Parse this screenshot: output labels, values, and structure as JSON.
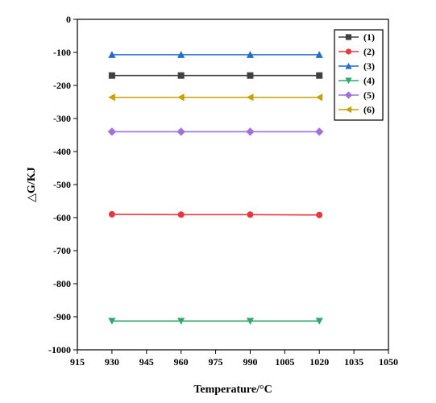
{
  "chart_data": {
    "type": "line",
    "title": "",
    "xlabel": "Temperature/°C",
    "ylabel": "△G/KJ",
    "xlim": [
      915,
      1050
    ],
    "ylim": [
      -1000,
      0
    ],
    "x_ticks": [
      915,
      930,
      945,
      960,
      975,
      990,
      1005,
      1020,
      1035,
      1050
    ],
    "y_ticks": [
      0,
      -100,
      -200,
      -300,
      -400,
      -500,
      -600,
      -700,
      -800,
      -900,
      -1000
    ],
    "x": [
      930,
      960,
      990,
      1020
    ],
    "legend_position": "top-right",
    "grid": false,
    "series": [
      {
        "name": "(1)",
        "color": "#404040",
        "marker": "square",
        "values": [
          -170,
          -170,
          -170,
          -170
        ]
      },
      {
        "name": "(2)",
        "color": "#e8383d",
        "marker": "circle",
        "values": [
          -590,
          -591,
          -591,
          -592
        ]
      },
      {
        "name": "(3)",
        "color": "#1f6fd0",
        "marker": "triangle-up",
        "values": [
          -107,
          -107,
          -107,
          -107
        ]
      },
      {
        "name": "(4)",
        "color": "#2ea86b",
        "marker": "triangle-down",
        "values": [
          -913,
          -913,
          -913,
          -913
        ]
      },
      {
        "name": "(5)",
        "color": "#a070e0",
        "marker": "diamond",
        "values": [
          -340,
          -340,
          -340,
          -340
        ]
      },
      {
        "name": "(6)",
        "color": "#c9a000",
        "marker": "triangle-left",
        "values": [
          -236,
          -236,
          -236,
          -236
        ]
      }
    ]
  }
}
